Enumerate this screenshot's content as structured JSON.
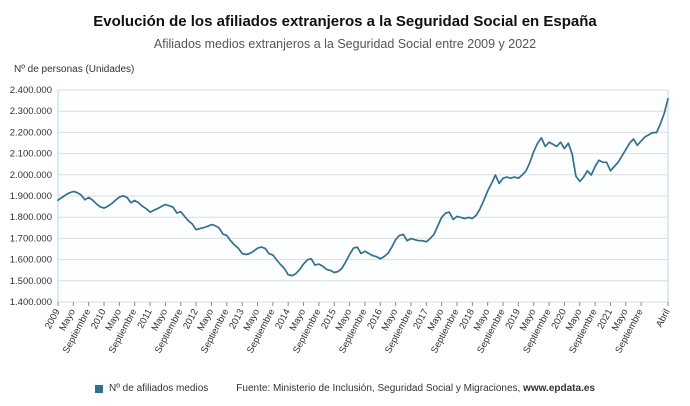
{
  "header": {
    "title": "Evolución de los afiliados extranjeros a la Seguridad Social en España",
    "subtitle": "Afiliados medios extranjeros a la Seguridad Social entre 2009 y 2022"
  },
  "axis_unit_label": "Nº de personas (Unidades)",
  "legend": {
    "label": "Nº de afiliados medios"
  },
  "source": {
    "prefix": "Fuente: Ministerio de Inclusión, Seguridad Social y Migraciones, ",
    "site": "www.epdata.es"
  },
  "colors": {
    "line": "#31708f",
    "plot_background": "#fcfeff",
    "plot_border": "#b9d7e8",
    "gridline": "#dddddd",
    "tick": "#8a8a8a"
  },
  "chart_data": {
    "type": "line",
    "title": "Evolución de los afiliados extranjeros a la Seguridad Social en España",
    "subtitle": "Afiliados medios extranjeros a la Seguridad Social entre 2009 y 2022",
    "ylabel": "Nº de personas (Unidades)",
    "xlabel": "",
    "ylim": [
      1400000,
      2400000
    ],
    "y_tick_step": 100000,
    "y_tick_labels": [
      "1.400.000",
      "1.500.000",
      "1.600.000",
      "1.700.000",
      "1.800.000",
      "1.900.000",
      "2.000.000",
      "2.100.000",
      "2.200.000",
      "2.300.000",
      "2.400.000"
    ],
    "x_start": "2009-01",
    "x_end": "2022-04",
    "grid": "horizontal",
    "legend_position": "bottom",
    "series_name": "Nº de afiliados medios",
    "x_ticks": [
      {
        "i": 0,
        "label": "2009"
      },
      {
        "i": 4,
        "label": "Mayo"
      },
      {
        "i": 8,
        "label": "Septiembre"
      },
      {
        "i": 12,
        "label": "2010"
      },
      {
        "i": 16,
        "label": "Mayo"
      },
      {
        "i": 20,
        "label": "Septiembre"
      },
      {
        "i": 24,
        "label": "2011"
      },
      {
        "i": 28,
        "label": "Mayo"
      },
      {
        "i": 32,
        "label": "Septiembre"
      },
      {
        "i": 36,
        "label": "2012"
      },
      {
        "i": 40,
        "label": "Mayo"
      },
      {
        "i": 44,
        "label": "Septiembre"
      },
      {
        "i": 48,
        "label": "2013"
      },
      {
        "i": 52,
        "label": "Mayo"
      },
      {
        "i": 56,
        "label": "Septiembre"
      },
      {
        "i": 60,
        "label": "2014"
      },
      {
        "i": 64,
        "label": "Mayo"
      },
      {
        "i": 68,
        "label": "Septiembre"
      },
      {
        "i": 72,
        "label": "2015"
      },
      {
        "i": 76,
        "label": "Mayo"
      },
      {
        "i": 80,
        "label": "Septiembre"
      },
      {
        "i": 84,
        "label": "2016"
      },
      {
        "i": 88,
        "label": "Mayo"
      },
      {
        "i": 92,
        "label": "Septiembre"
      },
      {
        "i": 96,
        "label": "2017"
      },
      {
        "i": 100,
        "label": "Mayo"
      },
      {
        "i": 104,
        "label": "Septiembre"
      },
      {
        "i": 108,
        "label": "2018"
      },
      {
        "i": 112,
        "label": "Mayo"
      },
      {
        "i": 116,
        "label": "Septiembre"
      },
      {
        "i": 120,
        "label": "2019"
      },
      {
        "i": 124,
        "label": "Mayo"
      },
      {
        "i": 128,
        "label": "Septiembre"
      },
      {
        "i": 132,
        "label": "2020"
      },
      {
        "i": 136,
        "label": "Mayo"
      },
      {
        "i": 140,
        "label": "Septiembre"
      },
      {
        "i": 144,
        "label": "2021"
      },
      {
        "i": 148,
        "label": "Mayo"
      },
      {
        "i": 152,
        "label": "Septiembre"
      },
      {
        "i": 159,
        "label": "Abril"
      }
    ],
    "values": [
      1880000,
      1893000,
      1905000,
      1915000,
      1921000,
      1916000,
      1905000,
      1882000,
      1893000,
      1881000,
      1863000,
      1849000,
      1843000,
      1852000,
      1864000,
      1880000,
      1895000,
      1901000,
      1893000,
      1868000,
      1879000,
      1868000,
      1852000,
      1840000,
      1824000,
      1833000,
      1841000,
      1851000,
      1860000,
      1854000,
      1847000,
      1820000,
      1826000,
      1804000,
      1783000,
      1768000,
      1741000,
      1746000,
      1751000,
      1757000,
      1765000,
      1760000,
      1749000,
      1720000,
      1714000,
      1689000,
      1669000,
      1654000,
      1629000,
      1624000,
      1629000,
      1640000,
      1654000,
      1659000,
      1653000,
      1628000,
      1622000,
      1598000,
      1577000,
      1558000,
      1529000,
      1524000,
      1534000,
      1554000,
      1579000,
      1599000,
      1604000,
      1574000,
      1579000,
      1569000,
      1554000,
      1549000,
      1539000,
      1544000,
      1559000,
      1589000,
      1624000,
      1654000,
      1659000,
      1629000,
      1639000,
      1629000,
      1619000,
      1614000,
      1604000,
      1614000,
      1629000,
      1659000,
      1694000,
      1714000,
      1719000,
      1689000,
      1699000,
      1694000,
      1689000,
      1689000,
      1684000,
      1699000,
      1719000,
      1759000,
      1799000,
      1819000,
      1824000,
      1789000,
      1804000,
      1799000,
      1794000,
      1799000,
      1794000,
      1809000,
      1839000,
      1879000,
      1924000,
      1959000,
      1999000,
      1959000,
      1984000,
      1989000,
      1984000,
      1989000,
      1984000,
      1999000,
      2019000,
      2059000,
      2109000,
      2149000,
      2174000,
      2134000,
      2154000,
      2144000,
      2134000,
      2154000,
      2124000,
      2149000,
      2099000,
      1994000,
      1969000,
      1989000,
      2019000,
      1999000,
      2039000,
      2069000,
      2059000,
      2059000,
      2019000,
      2039000,
      2059000,
      2089000,
      2119000,
      2149000,
      2169000,
      2139000,
      2159000,
      2179000,
      2189000,
      2199000,
      2199000,
      2239000,
      2289000,
      2359000
    ]
  }
}
